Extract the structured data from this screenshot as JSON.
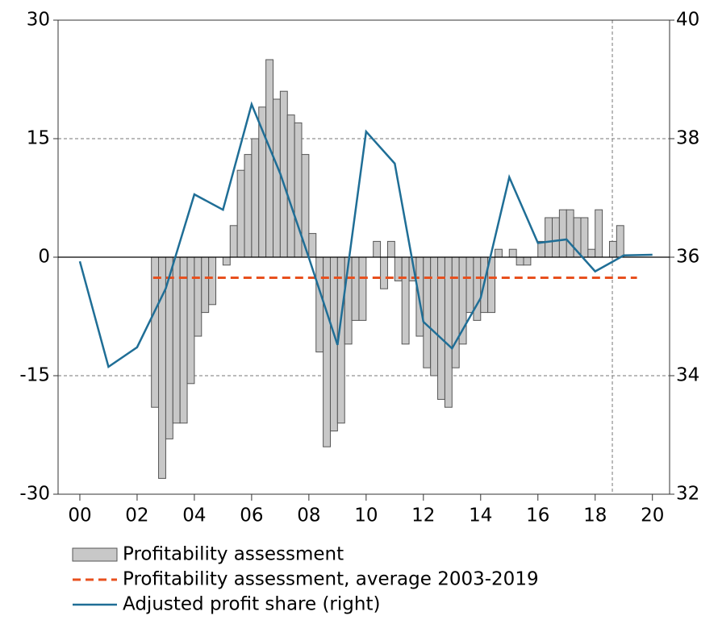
{
  "chart_data": {
    "type": "bar",
    "xlim": [
      1999.24,
      2020.6
    ],
    "xticks": [
      {
        "value": 2000,
        "label": "00"
      },
      {
        "value": 2002,
        "label": "02"
      },
      {
        "value": 2004,
        "label": "04"
      },
      {
        "value": 2006,
        "label": "06"
      },
      {
        "value": 2008,
        "label": "08"
      },
      {
        "value": 2010,
        "label": "10"
      },
      {
        "value": 2012,
        "label": "12"
      },
      {
        "value": 2014,
        "label": "14"
      },
      {
        "value": 2016,
        "label": "16"
      },
      {
        "value": 2018,
        "label": "18"
      },
      {
        "value": 2020,
        "label": "20"
      }
    ],
    "ylim": [
      -30,
      30
    ],
    "yticks": [
      -30,
      -15,
      0,
      15,
      30
    ],
    "y2lim": [
      32,
      40
    ],
    "y2ticks": [
      32,
      34,
      36,
      38,
      40
    ],
    "grid": true,
    "vline_x": 2018.6,
    "series": [
      {
        "name": "Profitability assessment",
        "type": "bar",
        "color": "#c8c8c8",
        "x": [
          2002.625,
          2002.875,
          2003.125,
          2003.375,
          2003.625,
          2003.875,
          2004.125,
          2004.375,
          2004.625,
          2004.875,
          2005.125,
          2005.375,
          2005.625,
          2005.875,
          2006.125,
          2006.375,
          2006.625,
          2006.875,
          2007.125,
          2007.375,
          2007.625,
          2007.875,
          2008.125,
          2008.375,
          2008.625,
          2008.875,
          2009.125,
          2009.375,
          2009.625,
          2009.875,
          2010.125,
          2010.375,
          2010.625,
          2010.875,
          2011.125,
          2011.375,
          2011.625,
          2011.875,
          2012.125,
          2012.375,
          2012.625,
          2012.875,
          2013.125,
          2013.375,
          2013.625,
          2013.875,
          2014.125,
          2014.375,
          2014.625,
          2014.875,
          2015.125,
          2015.375,
          2015.625,
          2015.875,
          2016.125,
          2016.375,
          2016.625,
          2016.875,
          2017.125,
          2017.375,
          2017.625,
          2017.875,
          2018.125,
          2018.375,
          2018.625,
          2018.875
        ],
        "values": [
          -19,
          -28,
          -23,
          -21,
          -21,
          -16,
          -10,
          -7,
          -6,
          0,
          -1,
          4,
          11,
          13,
          15,
          19,
          25,
          20,
          21,
          18,
          17,
          13,
          3,
          -12,
          -24,
          -22,
          -21,
          -11,
          -8,
          -8,
          0,
          2,
          -4,
          2,
          -3,
          -11,
          -3,
          -10,
          -14,
          -15,
          -18,
          -19,
          -14,
          -11,
          -7,
          -8,
          -7,
          -7,
          1,
          0,
          1,
          -1,
          -1,
          0,
          2,
          5,
          5,
          6,
          6,
          5,
          5,
          1,
          6,
          0,
          2,
          4
        ]
      },
      {
        "name": "Profitability assessment, average 2003-2019",
        "type": "dashed-line",
        "color": "#e8501e",
        "x": [
          2002.56,
          2019.46
        ],
        "values": [
          -2.6,
          -2.6
        ]
      },
      {
        "name": "Adjusted profit share (right)",
        "type": "line",
        "color": "#1f6e96",
        "axis": "y2",
        "x": [
          2000,
          2001,
          2002,
          2003,
          2004,
          2005,
          2006,
          2007,
          2008,
          2009,
          2010,
          2011,
          2012,
          2013,
          2014,
          2015,
          2016,
          2017,
          2018,
          2019,
          2020
        ],
        "values": [
          35.93,
          34.15,
          34.48,
          35.47,
          37.06,
          36.8,
          38.58,
          37.41,
          35.99,
          34.52,
          38.12,
          37.58,
          34.91,
          34.46,
          35.31,
          37.35,
          36.24,
          36.3,
          35.76,
          36.03,
          36.04
        ]
      }
    ]
  }
}
